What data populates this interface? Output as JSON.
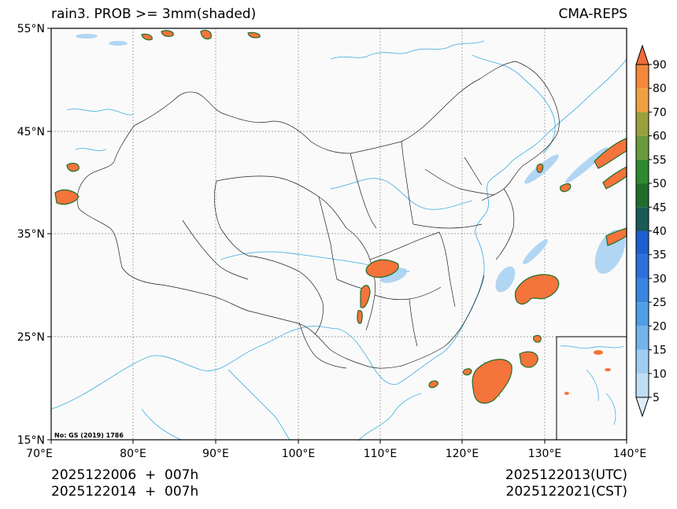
{
  "map": {
    "title_left": "rain3. PROB >= 3mm(shaded)",
    "title_right": "CMA-REPS",
    "copyright": "No: GS (2019) 1786",
    "lat_labels": [
      "55°N",
      "45°N",
      "35°N",
      "25°N",
      "15°N"
    ],
    "lon_labels": [
      "70°E",
      "80°E",
      "90°E",
      "100°E",
      "110°E",
      "120°E",
      "130°E",
      "140°E"
    ],
    "init_line_1": "2025122006  +  007h",
    "init_line_2": "2025122014  +  007h",
    "valid_utc": "2025122013(UTC)",
    "valid_cst": "2025122021(CST)"
  },
  "colorbar": {
    "levels": [
      "5",
      "10",
      "15",
      "20",
      "25",
      "30",
      "35",
      "40",
      "45",
      "50",
      "55",
      "60",
      "70",
      "80",
      "90"
    ],
    "colors": [
      "#ddeefa",
      "#bfdff6",
      "#9fcdf2",
      "#73b4ec",
      "#4f9ee6",
      "#3a85df",
      "#2f6fdb",
      "#1d5fcf",
      "#1a5a57",
      "#1f6d2b",
      "#2f8a2f",
      "#6a9a3a",
      "#9aa03c",
      "#f0a040",
      "#f5873a",
      "#f06b3a"
    ]
  },
  "colors": {
    "coast": "#4fb3e3",
    "border": "#000000",
    "high_prob": "#f4743b",
    "low_prob": "#a9d2f2"
  }
}
